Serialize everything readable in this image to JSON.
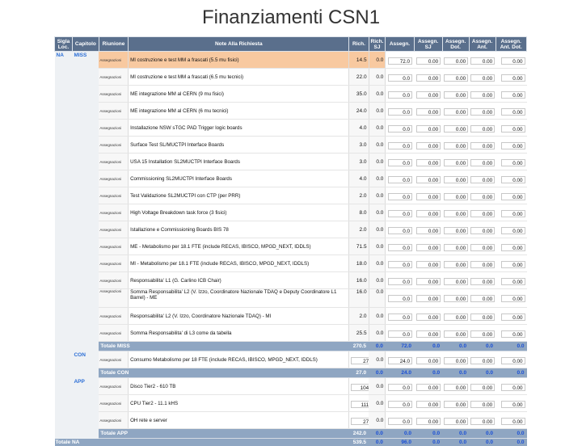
{
  "title": "Finanziamenti CSN1",
  "headers": {
    "sigla": "Sigla Loc.",
    "capitolo": "Capitolo",
    "riunione": "Riunione",
    "note": "Note Alla Richiesta",
    "rich": "Rich.",
    "rich_sj": "Rich. SJ",
    "assegn": "Assegn.",
    "assegn_sj": "Assegn. SJ",
    "assegn_dot": "Assegn. Dot.",
    "assegn_ant": "Assegn. Ant.",
    "assegn_ant_dot": "Assegn. Ant. Dot."
  },
  "area": "NA",
  "groups": [
    {
      "capitolo": "MISS",
      "rows": [
        {
          "riunione": "Assegnazioni",
          "note": "MI costruzione e test MM a frascati (5.5 mu fisici)",
          "rich": "14.5",
          "sj": "0.0",
          "assegn": "72.0",
          "a_sj": "0.00",
          "dot": "0.00",
          "ant": "0.00",
          "antdot": "0.00",
          "hl": true
        },
        {
          "riunione": "Assegnazioni",
          "note": "MI costruzione e test MM a frascati (6.5 mu tecnici)",
          "rich": "22.0",
          "sj": "0.0",
          "assegn": "0.0",
          "a_sj": "0.00",
          "dot": "0.00",
          "ant": "0.00",
          "antdot": "0.00"
        },
        {
          "riunione": "Assegnazioni",
          "note": "ME integrazione MM al CERN (9 mu fisici)",
          "rich": "35.0",
          "sj": "0.0",
          "assegn": "0.0",
          "a_sj": "0.00",
          "dot": "0.00",
          "ant": "0.00",
          "antdot": "0.00"
        },
        {
          "riunione": "Assegnazioni",
          "note": "ME integrazione MM al CERN (6 mu tecnici)",
          "rich": "24.0",
          "sj": "0.0",
          "assegn": "0.0",
          "a_sj": "0.00",
          "dot": "0.00",
          "ant": "0.00",
          "antdot": "0.00"
        },
        {
          "riunione": "Assegnazioni",
          "note": "Installazione NSW sTGC PAD Trigger logic boards",
          "rich": "4.0",
          "sj": "0.0",
          "assegn": "0.0",
          "a_sj": "0.00",
          "dot": "0.00",
          "ant": "0.00",
          "antdot": "0.00"
        },
        {
          "riunione": "Assegnazioni",
          "note": "Surface Test SL/MUCTPI Interface Boards",
          "rich": "3.0",
          "sj": "0.0",
          "assegn": "0.0",
          "a_sj": "0.00",
          "dot": "0.00",
          "ant": "0.00",
          "antdot": "0.00"
        },
        {
          "riunione": "Assegnazioni",
          "note": "USA 15 Installation SL2MUCTPI Interface Boards",
          "rich": "3.0",
          "sj": "0.0",
          "assegn": "0.0",
          "a_sj": "0.00",
          "dot": "0.00",
          "ant": "0.00",
          "antdot": "0.00"
        },
        {
          "riunione": "Assegnazioni",
          "note": "Commissioning SL2MUCTPI Interface Boards",
          "rich": "4.0",
          "sj": "0.0",
          "assegn": "0.0",
          "a_sj": "0.00",
          "dot": "0.00",
          "ant": "0.00",
          "antdot": "0.00"
        },
        {
          "riunione": "Assegnazioni",
          "note": "Test Validazione SL2MUCTPI con CTP (per PRR)",
          "rich": "2.0",
          "sj": "0.0",
          "assegn": "0.0",
          "a_sj": "0.00",
          "dot": "0.00",
          "ant": "0.00",
          "antdot": "0.00"
        },
        {
          "riunione": "Assegnazioni",
          "note": "High Voltage Breakdown task force (3 fisici)",
          "rich": "8.0",
          "sj": "0.0",
          "assegn": "0.0",
          "a_sj": "0.00",
          "dot": "0.00",
          "ant": "0.00",
          "antdot": "0.00"
        },
        {
          "riunione": "Assegnazioni",
          "note": "Istallazione e Commissioning Boards BIS 78",
          "rich": "2.0",
          "sj": "0.0",
          "assegn": "0.0",
          "a_sj": "0.00",
          "dot": "0.00",
          "ant": "0.00",
          "antdot": "0.00"
        },
        {
          "riunione": "Assegnazioni",
          "note": "ME - Metabolismo per 18.1 FTE (include RECAS, IBISCO, MPGD_NEXT, IDDLS)",
          "rich": "71.5",
          "sj": "0.0",
          "assegn": "0.0",
          "a_sj": "0.00",
          "dot": "0.00",
          "ant": "0.00",
          "antdot": "0.00"
        },
        {
          "riunione": "Assegnazioni",
          "note": "MI - Metabolismo per 18.1 FTE (include RECAS, IBISCO, MPGD_NEXT, IDDLS)",
          "rich": "18.0",
          "sj": "0.0",
          "assegn": "0.0",
          "a_sj": "0.00",
          "dot": "0.00",
          "ant": "0.00",
          "antdot": "0.00"
        },
        {
          "riunione": "Assegnazioni",
          "note": "Responsabilita' L1 (G. Carlino ICB Chair)",
          "rich": "16.0",
          "sj": "0.0",
          "assegn": "0.0",
          "a_sj": "0.00",
          "dot": "0.00",
          "ant": "0.00",
          "antdot": "0.00"
        },
        {
          "riunione": "Assegnazioni",
          "note": "Somma Responsabilita' L2 (V. Izzo, Coordinatore Nazionale TDAQ e Deputy Coordinatore L1 Barrel) - ME",
          "rich": "16.0",
          "sj": "0.0",
          "assegn": "0.0",
          "a_sj": "0.00",
          "dot": "0.00",
          "ant": "0.00",
          "antdot": "0.00",
          "two": true
        },
        {
          "riunione": "Assegnazioni",
          "note": "Responsabilita' L2 (V. Izzo, Coordinatore Nazionale TDAQ) - MI",
          "rich": "2.0",
          "sj": "0.0",
          "assegn": "0.0",
          "a_sj": "0.00",
          "dot": "0.00",
          "ant": "0.00",
          "antdot": "0.00"
        },
        {
          "riunione": "Assegnazioni",
          "note": "Somma Responsabilita' di L3 come da tabella",
          "rich": "25.5",
          "sj": "0.0",
          "assegn": "0.0",
          "a_sj": "0.00",
          "dot": "0.00",
          "ant": "0.00",
          "antdot": "0.00"
        }
      ],
      "total": {
        "label": "Totale MISS",
        "rich": "270.5",
        "sj": "0.0",
        "assegn": "72.0",
        "a_sj": "0.0",
        "dot": "0.0",
        "ant": "0.0",
        "antdot": "0.0"
      }
    },
    {
      "capitolo": "CON",
      "rows": [
        {
          "riunione": "Assegnazioni",
          "note": "Consumo Metabolismo per 18 FTE (include RECAS, IBISCO, MPGD_NEXT, IDDLS)",
          "rich": "27.0",
          "sj": "0.0",
          "assegn": "24.0",
          "a_sj": "0.00",
          "dot": "0.00",
          "ant": "0.00",
          "antdot": "0.00",
          "boxrich": true
        }
      ],
      "total": {
        "label": "Totale CON",
        "rich": "27.0",
        "sj": "0.0",
        "assegn": "24.0",
        "a_sj": "0.0",
        "dot": "0.0",
        "ant": "0.0",
        "antdot": "0.0"
      }
    },
    {
      "capitolo": "APP",
      "rows": [
        {
          "riunione": "Assegnazioni",
          "note": "Disco Tier2 - 610 TB",
          "rich": "104.0",
          "sj": "0.0",
          "assegn": "0.0",
          "a_sj": "0.00",
          "dot": "0.00",
          "ant": "0.00",
          "antdot": "0.00",
          "boxrich": true
        },
        {
          "riunione": "Assegnazioni",
          "note": "CPU Tier2 - 11.1 kHS",
          "rich": "111.0",
          "sj": "0.0",
          "assegn": "0.0",
          "a_sj": "0.00",
          "dot": "0.00",
          "ant": "0.00",
          "antdot": "0.00",
          "boxrich": true
        },
        {
          "riunione": "Assegnazioni",
          "note": "OH rete e server",
          "rich": "27.0",
          "sj": "0.0",
          "assegn": "0.0",
          "a_sj": "0.00",
          "dot": "0.00",
          "ant": "0.00",
          "antdot": "0.00",
          "boxrich": true
        }
      ],
      "total": {
        "label": "Totale APP",
        "rich": "242.0",
        "sj": "0.0",
        "assegn": "0.0",
        "a_sj": "0.0",
        "dot": "0.0",
        "ant": "0.0",
        "antdot": "0.0"
      }
    }
  ],
  "grand_total": {
    "label": "Totale NA",
    "rich": "539.5",
    "sj": "0.0",
    "assegn": "96.0",
    "a_sj": "0.0",
    "dot": "0.0",
    "ant": "0.0",
    "antdot": "0.0"
  }
}
